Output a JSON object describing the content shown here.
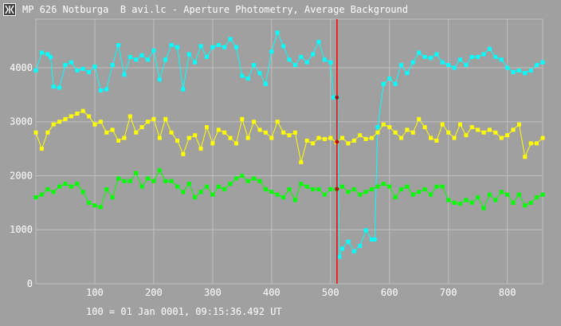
{
  "window": {
    "title": "MP 626 Notburga  B avi.lc - Aperture Photometry, Average Background"
  },
  "footer": {
    "time_reference": "100 = 01 Jan 0001, 09:15:36.492 UT"
  },
  "colors": {
    "background": "#a0a0a0",
    "grid": "#c0c0c0",
    "cyan_series": "#00ffff",
    "yellow_series": "#ffff00",
    "green_series": "#00ff00",
    "cursor_line": "#ff0000"
  },
  "chart_data": {
    "type": "scatter",
    "title": "",
    "xlabel": "",
    "ylabel": "",
    "xlim": [
      0,
      860
    ],
    "ylim": [
      0,
      4900
    ],
    "x_ticks": [
      "100",
      "200",
      "300",
      "400",
      "500",
      "600",
      "700",
      "800"
    ],
    "y_ticks": [
      "0",
      "1000",
      "2000",
      "3000",
      "4000"
    ],
    "cursor_frame": 511,
    "grid": true,
    "legend": "none",
    "series": [
      {
        "color": "#00ffff",
        "x": [
          0,
          10,
          20,
          25,
          30,
          40,
          50,
          60,
          70,
          80,
          90,
          100,
          110,
          120,
          130,
          140,
          150,
          160,
          170,
          180,
          190,
          200,
          210,
          220,
          230,
          240,
          250,
          260,
          270,
          280,
          290,
          300,
          310,
          320,
          330,
          340,
          350,
          360,
          370,
          380,
          390,
          400,
          410,
          420,
          430,
          440,
          450,
          460,
          470,
          480,
          490,
          500,
          505,
          510,
          512,
          515,
          520,
          530,
          540,
          550,
          560,
          570,
          575,
          580,
          590,
          600,
          610,
          620,
          630,
          640,
          650,
          660,
          670,
          680,
          690,
          700,
          710,
          720,
          730,
          740,
          750,
          760,
          770,
          780,
          790,
          800,
          810,
          820,
          830,
          840,
          850,
          860
        ],
        "y": [
          3950,
          4280,
          4250,
          4200,
          3650,
          3630,
          4050,
          4100,
          3950,
          3980,
          3920,
          4020,
          3580,
          3600,
          4050,
          4420,
          3870,
          4200,
          4150,
          4230,
          4150,
          4320,
          3780,
          4150,
          4420,
          4380,
          3600,
          4250,
          4100,
          4400,
          4200,
          4380,
          4420,
          4380,
          4530,
          4380,
          3850,
          3800,
          4050,
          3900,
          3700,
          4300,
          4650,
          4400,
          4150,
          4050,
          4200,
          4100,
          4250,
          4480,
          4150,
          4100,
          3450,
          3450,
          3450,
          500,
          650,
          780,
          600,
          700,
          990,
          820,
          820,
          2900,
          3700,
          3800,
          3700,
          4050,
          3900,
          4100,
          4280,
          4200,
          4180,
          4250,
          4100,
          4050,
          4000,
          4150,
          4050,
          4200,
          4200,
          4250,
          4350,
          4200,
          4150,
          4000,
          3920,
          3950,
          3900,
          3950,
          4050,
          4100
        ]
      },
      {
        "color": "#ffff00",
        "x": [
          0,
          10,
          20,
          30,
          40,
          50,
          60,
          70,
          80,
          90,
          100,
          110,
          120,
          130,
          140,
          150,
          160,
          170,
          180,
          190,
          200,
          210,
          220,
          230,
          240,
          250,
          260,
          270,
          280,
          290,
          300,
          310,
          320,
          330,
          340,
          350,
          360,
          370,
          380,
          390,
          400,
          410,
          420,
          430,
          440,
          450,
          460,
          470,
          480,
          490,
          500,
          510,
          520,
          530,
          540,
          550,
          560,
          570,
          580,
          590,
          600,
          610,
          620,
          630,
          640,
          650,
          660,
          670,
          680,
          690,
          700,
          710,
          720,
          730,
          740,
          750,
          760,
          770,
          780,
          790,
          800,
          810,
          820,
          830,
          840,
          850,
          860
        ],
        "y": [
          2800,
          2500,
          2800,
          2950,
          3000,
          3050,
          3100,
          3150,
          3200,
          3100,
          2950,
          3000,
          2800,
          2850,
          2650,
          2700,
          3100,
          2800,
          2900,
          3000,
          3050,
          2700,
          3050,
          2800,
          2650,
          2400,
          2700,
          2750,
          2500,
          2900,
          2600,
          2850,
          2800,
          2700,
          2600,
          3050,
          2700,
          3000,
          2850,
          2800,
          2700,
          3000,
          2800,
          2750,
          2800,
          2250,
          2650,
          2600,
          2700,
          2680,
          2700,
          2620,
          2700,
          2600,
          2650,
          2750,
          2680,
          2700,
          2800,
          2950,
          2900,
          2800,
          2700,
          2850,
          2800,
          3050,
          2900,
          2700,
          2650,
          2950,
          2800,
          2700,
          2950,
          2750,
          2900,
          2850,
          2800,
          2850,
          2800,
          2700,
          2750,
          2850,
          2950,
          2350,
          2600,
          2600,
          2700
        ]
      },
      {
        "color": "#00ff00",
        "x": [
          0,
          10,
          20,
          30,
          40,
          50,
          60,
          70,
          80,
          90,
          100,
          110,
          120,
          130,
          140,
          150,
          160,
          170,
          180,
          190,
          200,
          210,
          220,
          230,
          240,
          250,
          260,
          270,
          280,
          290,
          300,
          310,
          320,
          330,
          340,
          350,
          360,
          370,
          380,
          390,
          400,
          410,
          420,
          430,
          440,
          450,
          460,
          470,
          480,
          490,
          500,
          510,
          520,
          530,
          540,
          550,
          560,
          570,
          580,
          590,
          600,
          610,
          620,
          630,
          640,
          650,
          660,
          670,
          680,
          690,
          700,
          710,
          720,
          730,
          740,
          750,
          760,
          770,
          780,
          790,
          800,
          810,
          820,
          830,
          840,
          850,
          860
        ],
        "y": [
          1600,
          1650,
          1750,
          1700,
          1800,
          1850,
          1800,
          1850,
          1700,
          1500,
          1450,
          1420,
          1750,
          1600,
          1950,
          1900,
          1900,
          2050,
          1800,
          1950,
          1900,
          2100,
          1900,
          1900,
          1800,
          1700,
          1850,
          1600,
          1700,
          1800,
          1650,
          1800,
          1750,
          1850,
          1950,
          2000,
          1900,
          1950,
          1900,
          1750,
          1700,
          1650,
          1600,
          1750,
          1550,
          1850,
          1800,
          1750,
          1750,
          1650,
          1750,
          1750,
          1800,
          1700,
          1750,
          1650,
          1700,
          1750,
          1800,
          1850,
          1800,
          1600,
          1750,
          1800,
          1650,
          1700,
          1750,
          1650,
          1800,
          1800,
          1550,
          1500,
          1480,
          1550,
          1500,
          1600,
          1400,
          1650,
          1550,
          1700,
          1650,
          1500,
          1650,
          1450,
          1500,
          1600,
          1650
        ]
      }
    ]
  }
}
